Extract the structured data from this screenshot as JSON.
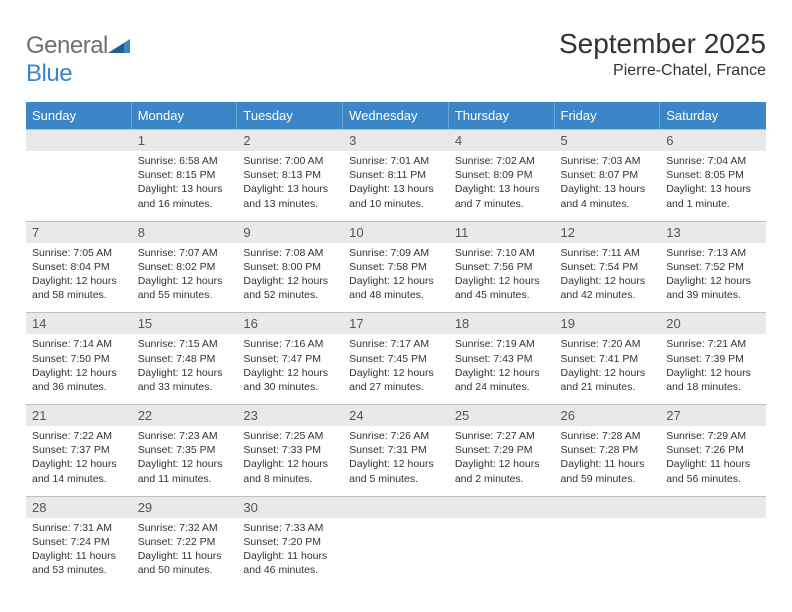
{
  "logo": {
    "word1": "General",
    "word2": "Blue"
  },
  "title": "September 2025",
  "location": "Pierre-Chatel, France",
  "colors": {
    "header_bg": "#3b86c6",
    "header_text": "#ffffff",
    "daynum_bg": "#e9e9e9",
    "cell_border": "#bfbfbf",
    "text": "#333333"
  },
  "dow": [
    "Sunday",
    "Monday",
    "Tuesday",
    "Wednesday",
    "Thursday",
    "Friday",
    "Saturday"
  ],
  "weeks": [
    [
      {
        "n": "",
        "sr": "",
        "ss": "",
        "dl": ""
      },
      {
        "n": "1",
        "sr": "Sunrise: 6:58 AM",
        "ss": "Sunset: 8:15 PM",
        "dl": "Daylight: 13 hours and 16 minutes."
      },
      {
        "n": "2",
        "sr": "Sunrise: 7:00 AM",
        "ss": "Sunset: 8:13 PM",
        "dl": "Daylight: 13 hours and 13 minutes."
      },
      {
        "n": "3",
        "sr": "Sunrise: 7:01 AM",
        "ss": "Sunset: 8:11 PM",
        "dl": "Daylight: 13 hours and 10 minutes."
      },
      {
        "n": "4",
        "sr": "Sunrise: 7:02 AM",
        "ss": "Sunset: 8:09 PM",
        "dl": "Daylight: 13 hours and 7 minutes."
      },
      {
        "n": "5",
        "sr": "Sunrise: 7:03 AM",
        "ss": "Sunset: 8:07 PM",
        "dl": "Daylight: 13 hours and 4 minutes."
      },
      {
        "n": "6",
        "sr": "Sunrise: 7:04 AM",
        "ss": "Sunset: 8:05 PM",
        "dl": "Daylight: 13 hours and 1 minute."
      }
    ],
    [
      {
        "n": "7",
        "sr": "Sunrise: 7:05 AM",
        "ss": "Sunset: 8:04 PM",
        "dl": "Daylight: 12 hours and 58 minutes."
      },
      {
        "n": "8",
        "sr": "Sunrise: 7:07 AM",
        "ss": "Sunset: 8:02 PM",
        "dl": "Daylight: 12 hours and 55 minutes."
      },
      {
        "n": "9",
        "sr": "Sunrise: 7:08 AM",
        "ss": "Sunset: 8:00 PM",
        "dl": "Daylight: 12 hours and 52 minutes."
      },
      {
        "n": "10",
        "sr": "Sunrise: 7:09 AM",
        "ss": "Sunset: 7:58 PM",
        "dl": "Daylight: 12 hours and 48 minutes."
      },
      {
        "n": "11",
        "sr": "Sunrise: 7:10 AM",
        "ss": "Sunset: 7:56 PM",
        "dl": "Daylight: 12 hours and 45 minutes."
      },
      {
        "n": "12",
        "sr": "Sunrise: 7:11 AM",
        "ss": "Sunset: 7:54 PM",
        "dl": "Daylight: 12 hours and 42 minutes."
      },
      {
        "n": "13",
        "sr": "Sunrise: 7:13 AM",
        "ss": "Sunset: 7:52 PM",
        "dl": "Daylight: 12 hours and 39 minutes."
      }
    ],
    [
      {
        "n": "14",
        "sr": "Sunrise: 7:14 AM",
        "ss": "Sunset: 7:50 PM",
        "dl": "Daylight: 12 hours and 36 minutes."
      },
      {
        "n": "15",
        "sr": "Sunrise: 7:15 AM",
        "ss": "Sunset: 7:48 PM",
        "dl": "Daylight: 12 hours and 33 minutes."
      },
      {
        "n": "16",
        "sr": "Sunrise: 7:16 AM",
        "ss": "Sunset: 7:47 PM",
        "dl": "Daylight: 12 hours and 30 minutes."
      },
      {
        "n": "17",
        "sr": "Sunrise: 7:17 AM",
        "ss": "Sunset: 7:45 PM",
        "dl": "Daylight: 12 hours and 27 minutes."
      },
      {
        "n": "18",
        "sr": "Sunrise: 7:19 AM",
        "ss": "Sunset: 7:43 PM",
        "dl": "Daylight: 12 hours and 24 minutes."
      },
      {
        "n": "19",
        "sr": "Sunrise: 7:20 AM",
        "ss": "Sunset: 7:41 PM",
        "dl": "Daylight: 12 hours and 21 minutes."
      },
      {
        "n": "20",
        "sr": "Sunrise: 7:21 AM",
        "ss": "Sunset: 7:39 PM",
        "dl": "Daylight: 12 hours and 18 minutes."
      }
    ],
    [
      {
        "n": "21",
        "sr": "Sunrise: 7:22 AM",
        "ss": "Sunset: 7:37 PM",
        "dl": "Daylight: 12 hours and 14 minutes."
      },
      {
        "n": "22",
        "sr": "Sunrise: 7:23 AM",
        "ss": "Sunset: 7:35 PM",
        "dl": "Daylight: 12 hours and 11 minutes."
      },
      {
        "n": "23",
        "sr": "Sunrise: 7:25 AM",
        "ss": "Sunset: 7:33 PM",
        "dl": "Daylight: 12 hours and 8 minutes."
      },
      {
        "n": "24",
        "sr": "Sunrise: 7:26 AM",
        "ss": "Sunset: 7:31 PM",
        "dl": "Daylight: 12 hours and 5 minutes."
      },
      {
        "n": "25",
        "sr": "Sunrise: 7:27 AM",
        "ss": "Sunset: 7:29 PM",
        "dl": "Daylight: 12 hours and 2 minutes."
      },
      {
        "n": "26",
        "sr": "Sunrise: 7:28 AM",
        "ss": "Sunset: 7:28 PM",
        "dl": "Daylight: 11 hours and 59 minutes."
      },
      {
        "n": "27",
        "sr": "Sunrise: 7:29 AM",
        "ss": "Sunset: 7:26 PM",
        "dl": "Daylight: 11 hours and 56 minutes."
      }
    ],
    [
      {
        "n": "28",
        "sr": "Sunrise: 7:31 AM",
        "ss": "Sunset: 7:24 PM",
        "dl": "Daylight: 11 hours and 53 minutes."
      },
      {
        "n": "29",
        "sr": "Sunrise: 7:32 AM",
        "ss": "Sunset: 7:22 PM",
        "dl": "Daylight: 11 hours and 50 minutes."
      },
      {
        "n": "30",
        "sr": "Sunrise: 7:33 AM",
        "ss": "Sunset: 7:20 PM",
        "dl": "Daylight: 11 hours and 46 minutes."
      },
      {
        "n": "",
        "sr": "",
        "ss": "",
        "dl": ""
      },
      {
        "n": "",
        "sr": "",
        "ss": "",
        "dl": ""
      },
      {
        "n": "",
        "sr": "",
        "ss": "",
        "dl": ""
      },
      {
        "n": "",
        "sr": "",
        "ss": "",
        "dl": ""
      }
    ]
  ]
}
